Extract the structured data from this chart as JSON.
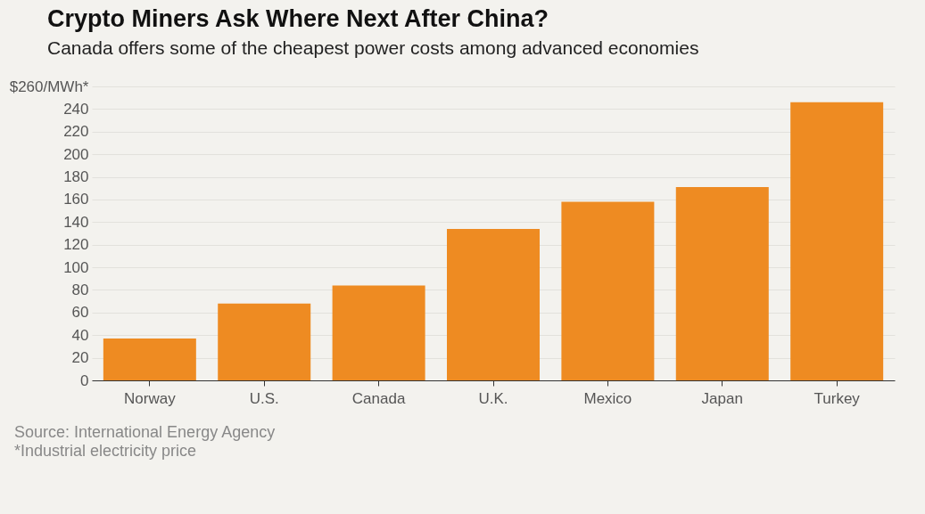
{
  "chart_data": {
    "type": "bar",
    "title": "Crypto Miners Ask Where Next After China?",
    "subtitle": "Canada offers some of the cheapest power costs among advanced economies",
    "categories": [
      "Norway",
      "U.S.",
      "Canada",
      "U.K.",
      "Mexico",
      "Japan",
      "Turkey"
    ],
    "values": [
      37,
      68,
      84,
      134,
      158,
      171,
      246
    ],
    "color": "#ee8b22",
    "ylim": [
      0,
      260
    ],
    "yticks": [
      0,
      20,
      40,
      60,
      80,
      100,
      120,
      140,
      160,
      180,
      200,
      220,
      240,
      {
        "value": 260,
        "label": "$260/MWh*"
      }
    ],
    "grid": "y",
    "annotations": [
      "Source: International Energy Agency",
      "*Industrial electricity price"
    ]
  }
}
